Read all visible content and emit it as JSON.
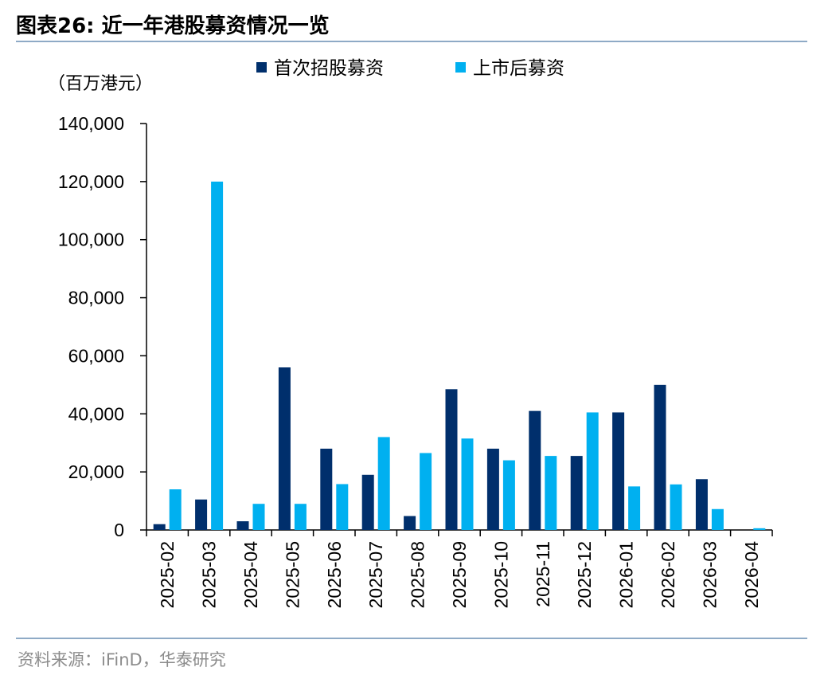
{
  "figure": {
    "title": "图表26:  近一年港股募资情况一览",
    "source": "资料来源：iFinD，华泰研究"
  },
  "colors": {
    "ipo": "#002f6c",
    "follow_on": "#00b0f0",
    "axis": "#000000",
    "rule": "#8eaac6"
  },
  "chart_data": {
    "type": "bar",
    "unit_label": "（百万港元）",
    "categories": [
      "2025-02",
      "2025-03",
      "2025-04",
      "2025-05",
      "2025-06",
      "2025-07",
      "2025-08",
      "2025-09",
      "2025-10",
      "2025-11",
      "2025-12",
      "2026-01",
      "2026-02",
      "2026-03",
      "2026-04"
    ],
    "series": [
      {
        "name": "首次招股募资",
        "values": [
          2000,
          10500,
          3000,
          56000,
          28000,
          19000,
          4800,
          48500,
          28000,
          41000,
          25500,
          40500,
          50000,
          17500,
          0
        ]
      },
      {
        "name": "上市后募资",
        "values": [
          14000,
          120000,
          9000,
          9000,
          15800,
          32000,
          26500,
          31500,
          24000,
          25500,
          40500,
          15000,
          15700,
          7200,
          600
        ]
      }
    ],
    "ylim": [
      0,
      140000
    ],
    "yticks": [
      0,
      20000,
      40000,
      60000,
      80000,
      100000,
      120000,
      140000
    ],
    "ytick_labels": [
      "0",
      "20,000",
      "40,000",
      "60,000",
      "80,000",
      "100,000",
      "120,000",
      "140,000"
    ],
    "legend_position": "top",
    "grid": false
  }
}
